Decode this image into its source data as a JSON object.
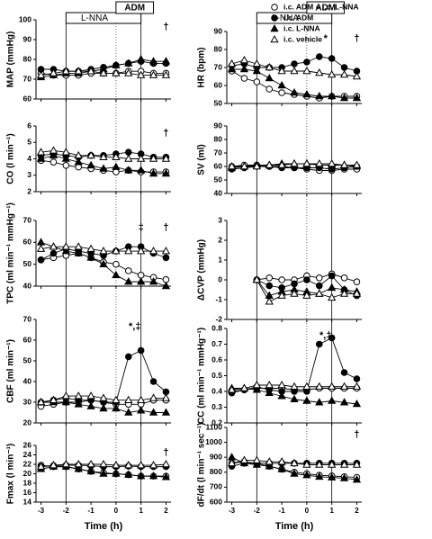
{
  "x_axis": {
    "label": "Time (h)",
    "x": [
      -3,
      -2.5,
      -2,
      -1.5,
      -1,
      -0.5,
      0,
      0.5,
      1,
      1.5,
      2
    ],
    "xlim": [
      -3.2,
      2.2
    ],
    "xticks": [
      -3,
      -2,
      -1,
      0,
      1,
      2
    ]
  },
  "period_labels": [
    "L-NNA",
    "ADM"
  ],
  "legend": [
    {
      "name": "i.c. ADM + i.c. L-NNA",
      "marker": "circle",
      "filled": false
    },
    {
      "name": "i.c. ADM",
      "marker": "circle",
      "filled": true
    },
    {
      "name": "i.c. L-NNA",
      "marker": "triangle",
      "filled": true
    },
    {
      "name": "i.c. vehicle",
      "marker": "triangle",
      "filled": false
    }
  ],
  "chart_data": [
    {
      "type": "line",
      "ylabel": "MAP (mmHg)",
      "ylim": [
        60,
        100
      ],
      "yticks": [
        60,
        70,
        80,
        90,
        100
      ],
      "annotations": [
        "†"
      ],
      "series": [
        {
          "values": [
            73,
            72,
            72,
            72,
            73,
            73,
            73,
            74,
            74,
            73,
            73
          ]
        },
        {
          "values": [
            75,
            75,
            74,
            74,
            75,
            76,
            77,
            78,
            79,
            78,
            78
          ]
        },
        {
          "values": [
            71,
            72,
            73,
            73,
            74,
            75,
            77,
            78,
            80,
            79,
            79
          ]
        },
        {
          "values": [
            72,
            73,
            74,
            74,
            74,
            73,
            73,
            73,
            72,
            72,
            72
          ]
        }
      ]
    },
    {
      "type": "line",
      "ylabel": "CO (l min⁻¹)",
      "ylim": [
        2,
        6
      ],
      "yticks": [
        2,
        3,
        4,
        5,
        6
      ],
      "annotations": [
        "†"
      ],
      "series": [
        {
          "values": [
            3.9,
            3.8,
            3.6,
            3.5,
            3.4,
            3.3,
            3.2,
            3.3,
            3.2,
            3.2,
            3.2
          ]
        },
        {
          "values": [
            4.2,
            4.3,
            4.2,
            4.1,
            4.2,
            4.2,
            4.3,
            4.4,
            4.3,
            4.1,
            4.1
          ]
        },
        {
          "values": [
            4.0,
            4.2,
            4.0,
            3.8,
            3.6,
            3.4,
            3.5,
            3.3,
            3.3,
            3.1,
            3.1
          ]
        },
        {
          "values": [
            4.4,
            4.5,
            4.4,
            4.2,
            4.2,
            4.1,
            4.1,
            4.0,
            4.0,
            4.0,
            4.0
          ]
        }
      ]
    },
    {
      "type": "line",
      "ylabel": "TPC (ml min⁻¹ mmHg⁻¹)",
      "ylim": [
        40,
        70
      ],
      "yticks": [
        40,
        50,
        60,
        70
      ],
      "annotations": [
        "‡",
        "†"
      ],
      "series": [
        {
          "values": [
            52,
            53,
            54,
            55,
            53,
            51,
            50,
            47,
            45,
            44,
            43
          ]
        },
        {
          "values": [
            52,
            55,
            57,
            56,
            55,
            54,
            56,
            58,
            58,
            55,
            53
          ]
        },
        {
          "values": [
            60,
            58,
            56,
            55,
            53,
            50,
            45,
            42,
            42,
            42,
            40
          ]
        },
        {
          "values": [
            57,
            58,
            58,
            58,
            57,
            56,
            56,
            56,
            56,
            56,
            56
          ]
        }
      ]
    },
    {
      "type": "line",
      "ylabel": "CBF (ml min⁻¹)",
      "ylim": [
        20,
        70
      ],
      "yticks": [
        20,
        30,
        40,
        50,
        60,
        70
      ],
      "annotations": [
        "*,‡"
      ],
      "series": [
        {
          "values": [
            28,
            29,
            30,
            30,
            31,
            30,
            29,
            29,
            29,
            31,
            31
          ]
        },
        {
          "values": [
            30,
            31,
            32,
            31,
            31,
            30,
            30,
            52,
            55,
            40,
            35
          ]
        },
        {
          "values": [
            30,
            30,
            30,
            29,
            28,
            27,
            27,
            25,
            26,
            25,
            25
          ]
        },
        {
          "values": [
            30,
            31,
            33,
            33,
            33,
            32,
            31,
            31,
            31,
            32,
            32
          ]
        }
      ]
    },
    {
      "type": "line",
      "ylabel": "Fmax (l min⁻¹)",
      "ylim": [
        14,
        26
      ],
      "yticks": [
        14,
        16,
        18,
        20,
        22,
        24,
        26
      ],
      "annotations": [
        "†"
      ],
      "series": [
        {
          "values": [
            21.8,
            21.5,
            21.5,
            21.0,
            20.5,
            20.2,
            20.0,
            19.8,
            19.5,
            19.5,
            19.5
          ]
        },
        {
          "values": [
            21.5,
            21.7,
            21.8,
            21.8,
            21.7,
            21.5,
            21.5,
            21.6,
            21.5,
            21.5,
            21.5
          ]
        },
        {
          "values": [
            21.0,
            21.5,
            21.5,
            21.0,
            20.5,
            20.0,
            20.0,
            19.8,
            19.5,
            19.5,
            19.3
          ]
        },
        {
          "values": [
            21.5,
            21.8,
            22.0,
            22.0,
            22.0,
            22.0,
            21.8,
            21.8,
            21.8,
            21.8,
            22.0
          ]
        }
      ]
    },
    {
      "type": "line",
      "ylabel": "HR (bpm)",
      "ylim": [
        50,
        90
      ],
      "yticks": [
        50,
        60,
        70,
        80,
        90
      ],
      "annotations": [
        "*",
        "†"
      ],
      "series": [
        {
          "values": [
            68,
            64,
            62,
            58,
            56,
            55,
            54,
            53,
            54,
            54,
            54
          ]
        },
        {
          "values": [
            71,
            72,
            70,
            70,
            70,
            72,
            73,
            76,
            75,
            70,
            68
          ]
        },
        {
          "values": [
            69,
            69,
            68,
            64,
            60,
            56,
            55,
            54,
            54,
            53,
            53
          ]
        },
        {
          "values": [
            72,
            74,
            72,
            70,
            68,
            68,
            68,
            67,
            66,
            66,
            65
          ]
        }
      ]
    },
    {
      "type": "line",
      "ylabel": "SV (ml)",
      "ylim": [
        40,
        90
      ],
      "yticks": [
        40,
        50,
        60,
        70,
        80,
        90
      ],
      "annotations": [],
      "series": [
        {
          "values": [
            60,
            61,
            61,
            60,
            60,
            59,
            58,
            57,
            57,
            58,
            58
          ]
        },
        {
          "values": [
            58,
            59,
            60,
            60,
            59,
            59,
            59,
            59,
            58,
            59,
            60
          ]
        },
        {
          "values": [
            59,
            60,
            61,
            61,
            62,
            62,
            62,
            61,
            61,
            61,
            60
          ]
        },
        {
          "values": [
            60,
            60,
            60,
            61,
            61,
            62,
            62,
            62,
            62,
            61,
            61
          ]
        }
      ]
    },
    {
      "type": "line",
      "ylabel": "ΔCVP (mmHg)",
      "ylim": [
        -2,
        3
      ],
      "yticks": [
        -2,
        -1,
        0,
        1,
        2,
        3
      ],
      "annotations": [],
      "series": [
        {
          "values": [
            null,
            null,
            0,
            0.1,
            0,
            0,
            0.2,
            0.1,
            0.3,
            0.1,
            -0.1
          ]
        },
        {
          "values": [
            null,
            null,
            0,
            -0.3,
            -0.4,
            -0.2,
            0,
            -0.3,
            0.2,
            -0.5,
            -0.8
          ]
        },
        {
          "values": [
            null,
            null,
            0,
            -0.8,
            -0.6,
            -0.5,
            -0.6,
            -0.7,
            -0.4,
            -0.5,
            -0.6
          ]
        },
        {
          "values": [
            null,
            null,
            0,
            -1.1,
            -0.8,
            -0.7,
            -0.8,
            -0.7,
            -0.9,
            -0.7,
            -0.7
          ]
        }
      ]
    },
    {
      "type": "line",
      "ylabel": "CC (ml min⁻¹ mmHg⁻¹)",
      "ylim": [
        0.2,
        0.8
      ],
      "yticks": [
        0.2,
        0.3,
        0.4,
        0.5,
        0.6,
        0.7,
        0.8
      ],
      "annotations": [
        "*,‡"
      ],
      "series": [
        {
          "values": [
            0.4,
            0.41,
            0.42,
            0.42,
            0.42,
            0.41,
            0.41,
            0.42,
            0.42,
            0.42,
            0.42
          ]
        },
        {
          "values": [
            0.39,
            0.41,
            0.43,
            0.41,
            0.4,
            0.4,
            0.4,
            0.7,
            0.74,
            0.52,
            0.48
          ]
        },
        {
          "values": [
            0.42,
            0.42,
            0.41,
            0.39,
            0.37,
            0.35,
            0.34,
            0.33,
            0.34,
            0.33,
            0.32
          ]
        },
        {
          "values": [
            0.41,
            0.42,
            0.44,
            0.44,
            0.44,
            0.43,
            0.43,
            0.43,
            0.43,
            0.43,
            0.43
          ]
        }
      ]
    },
    {
      "type": "line",
      "ylabel": "dF/dt (l min⁻¹ sec⁻¹)",
      "ylim": [
        600,
        1100
      ],
      "yticks": [
        600,
        700,
        800,
        900,
        1000,
        1100
      ],
      "annotations": [
        "†"
      ],
      "series": [
        {
          "values": [
            860,
            870,
            860,
            840,
            820,
            800,
            790,
            780,
            775,
            770,
            765
          ]
        },
        {
          "values": [
            840,
            860,
            860,
            860,
            860,
            860,
            860,
            860,
            860,
            860,
            860
          ]
        },
        {
          "values": [
            900,
            860,
            850,
            840,
            820,
            790,
            780,
            770,
            765,
            760,
            750
          ]
        },
        {
          "values": [
            860,
            880,
            880,
            870,
            870,
            860,
            850,
            850,
            850,
            850,
            850
          ]
        }
      ]
    }
  ]
}
